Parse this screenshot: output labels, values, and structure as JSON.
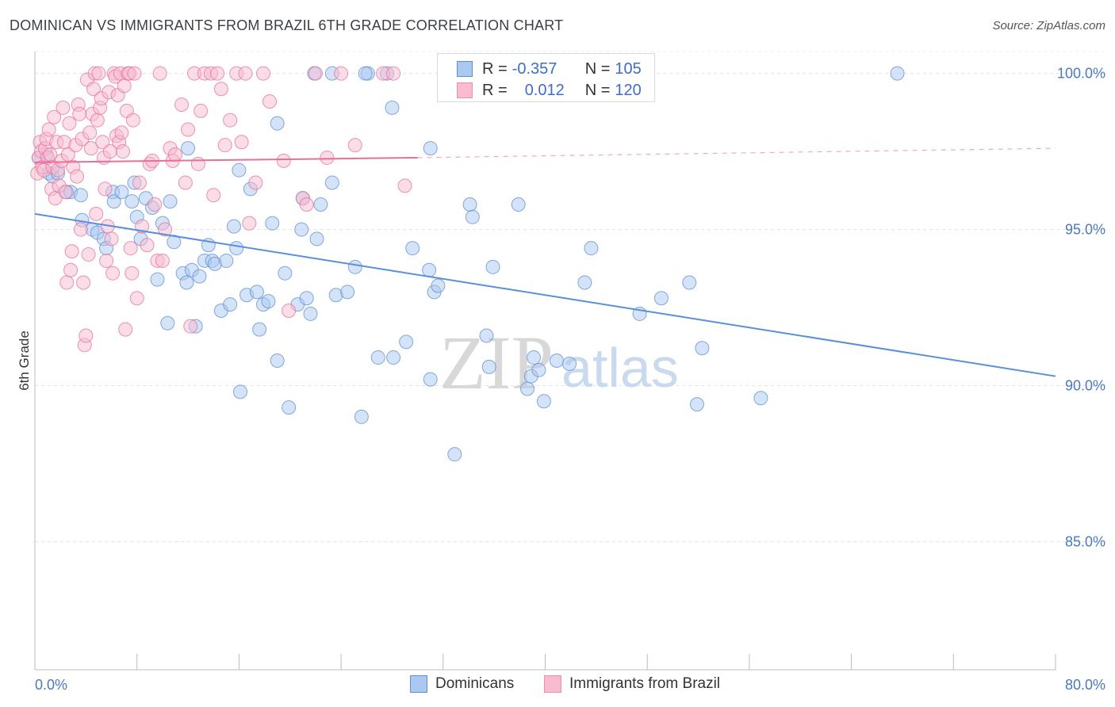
{
  "title": "DOMINICAN VS IMMIGRANTS FROM BRAZIL 6TH GRADE CORRELATION CHART",
  "source": "Source: ZipAtlas.com",
  "watermark": {
    "zip": "ZIP",
    "atlas": "atlas"
  },
  "stats": [
    {
      "r_label": "R =",
      "r_value": "-0.357",
      "n_label": "N =",
      "n_value": "105",
      "fill": "#aac8f0",
      "stroke": "#5b8fd6"
    },
    {
      "r_label": "R =",
      "r_value": "0.012",
      "n_label": "N =",
      "n_value": "120",
      "fill": "#f7bcd0",
      "stroke": "#e890ad"
    }
  ],
  "legend": [
    {
      "label": "Dominicans",
      "fill": "#aac8f0",
      "stroke": "#5b8fd6"
    },
    {
      "label": "Immigrants from Brazil",
      "fill": "#f7bcd0",
      "stroke": "#e890ad"
    }
  ],
  "chart_data": {
    "type": "scatter",
    "title": "DOMINICAN VS IMMIGRANTS FROM BRAZIL 6TH GRADE CORRELATION CHART",
    "xlabel": "",
    "ylabel": "6th Grade",
    "xlim": [
      0,
      80
    ],
    "ylim": [
      80.9,
      100.7
    ],
    "x_tick_labels": [
      "0.0%",
      "80.0%"
    ],
    "y_ticks": [
      85,
      90,
      95,
      100
    ],
    "y_tick_labels": [
      "85.0%",
      "90.0%",
      "95.0%",
      "100.0%"
    ],
    "grid": "horizontal dashed",
    "legend_position": "bottom",
    "series": [
      {
        "name": "Dominicans",
        "color": "#5b8fd6",
        "fill": "#aac8f0",
        "trend": {
          "x": [
            0,
            80
          ],
          "y": [
            95.5,
            90.3
          ],
          "dashed_from": null
        },
        "points": [
          [
            0.3,
            97.3
          ],
          [
            0.9,
            97.4
          ],
          [
            1.1,
            96.8
          ],
          [
            1.4,
            96.7
          ],
          [
            1.8,
            96.8
          ],
          [
            2.5,
            96.2
          ],
          [
            2.8,
            96.2
          ],
          [
            3.6,
            96.1
          ],
          [
            3.7,
            95.3
          ],
          [
            4.5,
            95.0
          ],
          [
            4.9,
            94.9
          ],
          [
            5.4,
            94.7
          ],
          [
            5.6,
            94.4
          ],
          [
            6.1,
            96.2
          ],
          [
            6.2,
            95.9
          ],
          [
            6.8,
            96.2
          ],
          [
            7.6,
            95.9
          ],
          [
            7.8,
            96.5
          ],
          [
            8.0,
            95.4
          ],
          [
            8.3,
            94.7
          ],
          [
            8.7,
            96.0
          ],
          [
            9.2,
            95.7
          ],
          [
            9.6,
            93.4
          ],
          [
            10.0,
            95.2
          ],
          [
            10.4,
            92.0
          ],
          [
            10.6,
            95.9
          ],
          [
            10.9,
            94.6
          ],
          [
            11.6,
            93.6
          ],
          [
            11.9,
            93.3
          ],
          [
            12.3,
            93.7
          ],
          [
            12.6,
            91.9
          ],
          [
            12.9,
            93.5
          ],
          [
            13.3,
            94.0
          ],
          [
            13.6,
            94.5
          ],
          [
            13.9,
            94.0
          ],
          [
            14.1,
            93.9
          ],
          [
            14.6,
            92.4
          ],
          [
            15.0,
            94.0
          ],
          [
            15.3,
            92.6
          ],
          [
            15.6,
            95.1
          ],
          [
            15.8,
            94.4
          ],
          [
            16.1,
            89.8
          ],
          [
            16.6,
            92.9
          ],
          [
            16.9,
            96.3
          ],
          [
            17.4,
            93.0
          ],
          [
            17.6,
            91.8
          ],
          [
            17.9,
            92.6
          ],
          [
            18.3,
            92.7
          ],
          [
            18.6,
            95.2
          ],
          [
            19.0,
            90.8
          ],
          [
            19.6,
            93.6
          ],
          [
            19.9,
            89.3
          ],
          [
            20.6,
            92.6
          ],
          [
            20.9,
            95.0
          ],
          [
            21.3,
            92.8
          ],
          [
            21.6,
            92.3
          ],
          [
            22.1,
            94.7
          ],
          [
            22.4,
            95.8
          ],
          [
            23.6,
            92.9
          ],
          [
            24.5,
            93.0
          ],
          [
            25.1,
            93.8
          ],
          [
            25.6,
            89.0
          ],
          [
            26.1,
            100.0
          ],
          [
            26.9,
            90.9
          ],
          [
            28.1,
            90.9
          ],
          [
            29.1,
            91.4
          ],
          [
            29.6,
            94.4
          ],
          [
            30.9,
            93.7
          ],
          [
            31.0,
            90.2
          ],
          [
            31.3,
            93.0
          ],
          [
            31.6,
            93.2
          ],
          [
            32.9,
            87.8
          ],
          [
            34.1,
            95.8
          ],
          [
            34.3,
            95.4
          ],
          [
            35.4,
            91.6
          ],
          [
            35.6,
            90.6
          ],
          [
            35.9,
            93.8
          ],
          [
            37.9,
            95.8
          ],
          [
            38.6,
            89.9
          ],
          [
            38.9,
            90.3
          ],
          [
            39.1,
            90.9
          ],
          [
            39.5,
            90.5
          ],
          [
            39.9,
            89.5
          ],
          [
            40.9,
            90.8
          ],
          [
            41.9,
            90.7
          ],
          [
            43.1,
            93.3
          ],
          [
            43.6,
            94.4
          ],
          [
            47.4,
            92.3
          ],
          [
            49.1,
            92.8
          ],
          [
            51.3,
            93.3
          ],
          [
            51.9,
            89.4
          ],
          [
            52.3,
            91.2
          ],
          [
            56.9,
            89.6
          ],
          [
            67.6,
            100.0
          ],
          [
            21.9,
            100.0
          ],
          [
            23.3,
            100.0
          ],
          [
            25.9,
            100.0
          ],
          [
            27.6,
            100.0
          ],
          [
            19.0,
            98.4
          ],
          [
            21.0,
            96.0
          ],
          [
            12.0,
            97.6
          ],
          [
            23.3,
            96.5
          ],
          [
            16.0,
            96.9
          ],
          [
            28.0,
            98.9
          ],
          [
            31.0,
            97.6
          ]
        ]
      },
      {
        "name": "Immigrants from Brazil",
        "color": "#e86f99",
        "fill": "#f7bcd0",
        "trend": {
          "x": [
            0,
            30,
            80
          ],
          "y": [
            97.15,
            97.3,
            97.6
          ],
          "dashed_from": 30
        },
        "points": [
          [
            0.2,
            96.8
          ],
          [
            0.3,
            97.3
          ],
          [
            0.4,
            97.8
          ],
          [
            0.5,
            97.5
          ],
          [
            0.6,
            97.0
          ],
          [
            0.7,
            96.9
          ],
          [
            0.8,
            97.6
          ],
          [
            0.9,
            97.9
          ],
          [
            1.0,
            97.3
          ],
          [
            1.1,
            98.2
          ],
          [
            1.2,
            97.4
          ],
          [
            1.3,
            96.3
          ],
          [
            1.4,
            97.0
          ],
          [
            1.5,
            98.6
          ],
          [
            1.6,
            96.0
          ],
          [
            1.7,
            97.8
          ],
          [
            1.8,
            96.9
          ],
          [
            1.9,
            96.4
          ],
          [
            2.1,
            97.2
          ],
          [
            2.2,
            98.9
          ],
          [
            2.3,
            97.8
          ],
          [
            2.4,
            96.2
          ],
          [
            2.5,
            93.3
          ],
          [
            2.6,
            97.4
          ],
          [
            2.7,
            98.4
          ],
          [
            2.8,
            93.7
          ],
          [
            2.9,
            94.3
          ],
          [
            3.0,
            97.0
          ],
          [
            3.2,
            97.7
          ],
          [
            3.3,
            96.7
          ],
          [
            3.4,
            99.0
          ],
          [
            3.5,
            98.7
          ],
          [
            3.6,
            95.0
          ],
          [
            3.7,
            97.9
          ],
          [
            3.8,
            93.3
          ],
          [
            3.9,
            91.3
          ],
          [
            4.0,
            91.6
          ],
          [
            4.1,
            99.8
          ],
          [
            4.2,
            94.2
          ],
          [
            4.3,
            98.1
          ],
          [
            4.4,
            97.6
          ],
          [
            4.5,
            98.7
          ],
          [
            4.6,
            99.5
          ],
          [
            4.7,
            100.0
          ],
          [
            4.8,
            95.5
          ],
          [
            4.9,
            98.5
          ],
          [
            5.0,
            100.0
          ],
          [
            5.1,
            98.9
          ],
          [
            5.2,
            99.2
          ],
          [
            5.3,
            97.8
          ],
          [
            5.4,
            97.3
          ],
          [
            5.5,
            96.3
          ],
          [
            5.6,
            94.0
          ],
          [
            5.7,
            95.1
          ],
          [
            5.8,
            99.4
          ],
          [
            5.9,
            97.5
          ],
          [
            6.0,
            94.7
          ],
          [
            6.1,
            93.6
          ],
          [
            6.2,
            100.0
          ],
          [
            6.3,
            99.9
          ],
          [
            6.4,
            98.0
          ],
          [
            6.5,
            99.3
          ],
          [
            6.6,
            97.8
          ],
          [
            6.7,
            100.0
          ],
          [
            6.8,
            98.1
          ],
          [
            6.9,
            97.5
          ],
          [
            7.0,
            99.6
          ],
          [
            7.1,
            91.8
          ],
          [
            7.2,
            98.8
          ],
          [
            7.3,
            100.0
          ],
          [
            7.4,
            100.0
          ],
          [
            7.5,
            94.4
          ],
          [
            7.6,
            93.6
          ],
          [
            7.7,
            98.5
          ],
          [
            7.8,
            100.0
          ],
          [
            8.0,
            92.8
          ],
          [
            8.2,
            96.5
          ],
          [
            8.4,
            95.1
          ],
          [
            8.8,
            94.5
          ],
          [
            9.0,
            97.1
          ],
          [
            9.2,
            97.2
          ],
          [
            9.4,
            95.8
          ],
          [
            9.6,
            94.0
          ],
          [
            9.8,
            100.0
          ],
          [
            10.0,
            94.0
          ],
          [
            10.2,
            95.0
          ],
          [
            10.6,
            97.6
          ],
          [
            10.8,
            97.2
          ],
          [
            11.0,
            97.4
          ],
          [
            11.5,
            99.0
          ],
          [
            11.8,
            96.5
          ],
          [
            12.0,
            98.2
          ],
          [
            12.2,
            91.9
          ],
          [
            12.5,
            100.0
          ],
          [
            12.8,
            97.1
          ],
          [
            13.0,
            98.8
          ],
          [
            13.3,
            100.0
          ],
          [
            13.8,
            100.0
          ],
          [
            14.0,
            96.1
          ],
          [
            14.3,
            100.0
          ],
          [
            14.6,
            99.5
          ],
          [
            14.9,
            97.7
          ],
          [
            15.3,
            98.5
          ],
          [
            15.8,
            100.0
          ],
          [
            16.2,
            97.8
          ],
          [
            16.5,
            100.0
          ],
          [
            16.8,
            95.2
          ],
          [
            17.3,
            96.5
          ],
          [
            17.9,
            100.0
          ],
          [
            18.4,
            99.1
          ],
          [
            19.5,
            97.2
          ],
          [
            19.9,
            92.4
          ],
          [
            21.0,
            96.0
          ],
          [
            21.3,
            95.8
          ],
          [
            22.0,
            100.0
          ],
          [
            22.9,
            97.3
          ],
          [
            24.0,
            100.0
          ],
          [
            25.1,
            97.7
          ],
          [
            27.3,
            100.0
          ],
          [
            28.1,
            100.0
          ],
          [
            29.0,
            96.4
          ]
        ]
      }
    ]
  }
}
